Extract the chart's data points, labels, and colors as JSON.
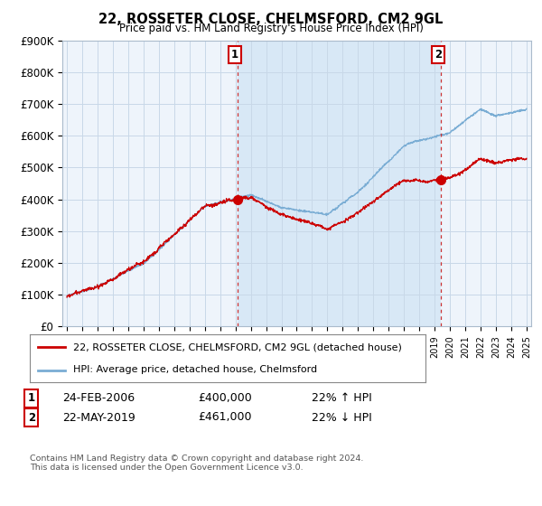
{
  "title": "22, ROSSETER CLOSE, CHELMSFORD, CM2 9GL",
  "subtitle": "Price paid vs. HM Land Registry's House Price Index (HPI)",
  "ylim": [
    0,
    900000
  ],
  "yticks": [
    0,
    100000,
    200000,
    300000,
    400000,
    500000,
    600000,
    700000,
    800000,
    900000
  ],
  "ytick_labels": [
    "£0",
    "£100K",
    "£200K",
    "£300K",
    "£400K",
    "£500K",
    "£600K",
    "£700K",
    "£800K",
    "£900K"
  ],
  "sale1_date": 2006.12,
  "sale1_price": 400000,
  "sale1_label": "24-FEB-2006",
  "sale1_hpi_pct": "22% ↑ HPI",
  "sale2_date": 2019.38,
  "sale2_price": 461000,
  "sale2_label": "22-MAY-2019",
  "sale2_hpi_pct": "22% ↓ HPI",
  "line1_color": "#cc0000",
  "line2_color": "#7aadd4",
  "vline_color": "#cc3333",
  "marker_color": "#cc0000",
  "legend1_label": "22, ROSSETER CLOSE, CHELMSFORD, CM2 9GL (detached house)",
  "legend2_label": "HPI: Average price, detached house, Chelmsford",
  "footer": "Contains HM Land Registry data © Crown copyright and database right 2024.\nThis data is licensed under the Open Government Licence v3.0.",
  "background_color": "#ffffff",
  "plot_bg_color": "#eef4fb",
  "shade_color": "#d0e4f5",
  "grid_color": "#c8d8e8"
}
